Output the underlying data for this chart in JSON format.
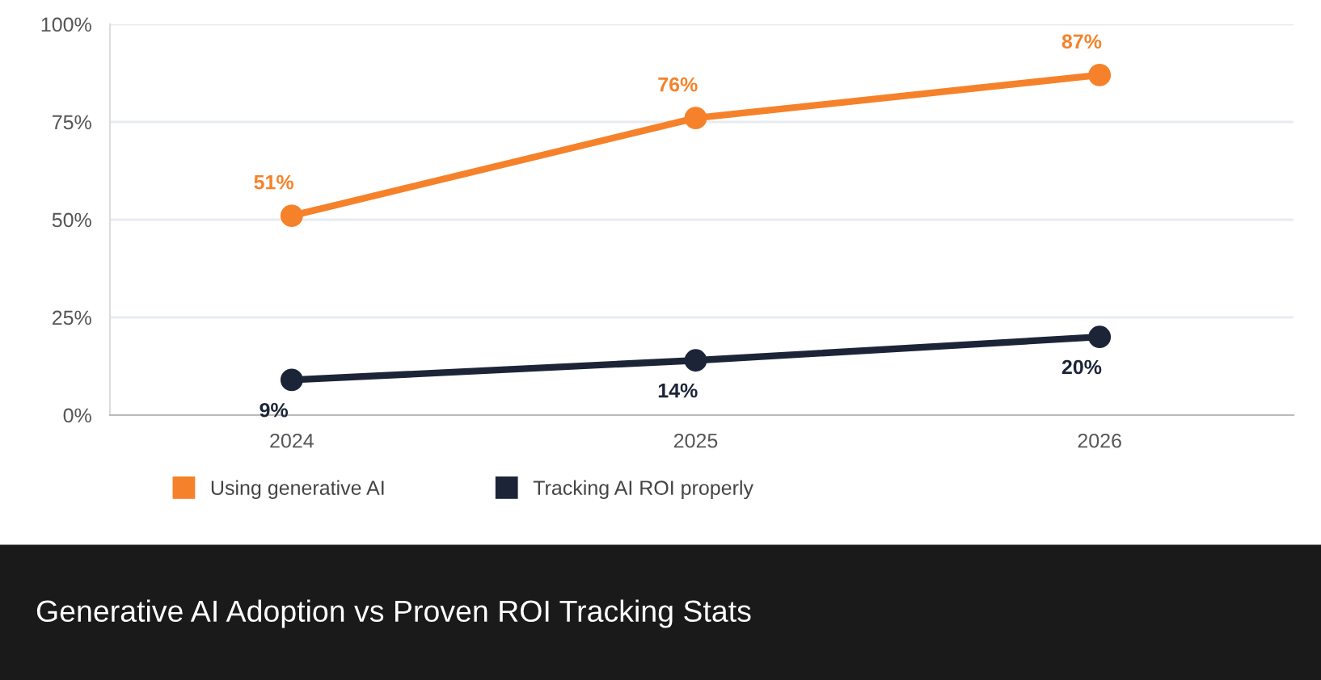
{
  "chart_data": {
    "type": "line",
    "title": "Generative AI Adoption vs Proven ROI Tracking Stats",
    "categories": [
      "2024",
      "2025",
      "2026"
    ],
    "series": [
      {
        "name": "Using generative AI",
        "color": "#f5822a",
        "values": [
          51,
          76,
          87
        ],
        "value_labels": [
          "51%",
          "76%",
          "87%"
        ]
      },
      {
        "name": "Tracking AI ROI properly",
        "color": "#1c2538",
        "values": [
          9,
          14,
          20
        ],
        "value_labels": [
          "9%",
          "14%",
          "20%"
        ]
      }
    ],
    "ylim": [
      0,
      100
    ],
    "yticks": [
      {
        "value": 0,
        "label": "0%"
      },
      {
        "value": 25,
        "label": "25%"
      },
      {
        "value": 50,
        "label": "50%"
      },
      {
        "value": 75,
        "label": "75%"
      },
      {
        "value": 100,
        "label": "100%"
      }
    ],
    "grid": "y",
    "legend": "bottom",
    "marker": "circle",
    "line_style": "solid"
  }
}
